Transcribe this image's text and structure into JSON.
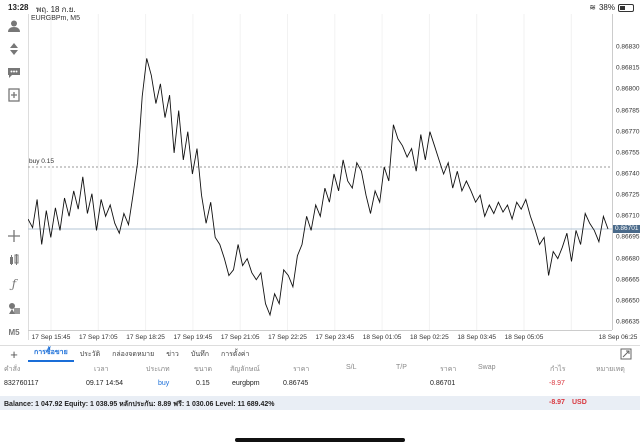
{
  "status_bar": {
    "time": "13:28",
    "date": "พฤ. 18 ก.ย.",
    "battery": "38%"
  },
  "chart": {
    "symbol": "EURGBPm, M5",
    "buy_line_label": "buy 0.15",
    "current_price": "0.86701"
  },
  "chart_data": {
    "type": "line",
    "symbol": "EURGBPm",
    "timeframe": "M5",
    "ylim": [
      0.86635,
      0.86845
    ],
    "y_ticks": [
      "0.86830",
      "0.86815",
      "0.86800",
      "0.86785",
      "0.86770",
      "0.86755",
      "0.86740",
      "0.86725",
      "0.86710",
      "0.86695",
      "0.86680",
      "0.86665",
      "0.86650",
      "0.86635"
    ],
    "x_ticks": [
      "17 Sep 15:45",
      "17 Sep 17:05",
      "17 Sep 18:25",
      "17 Sep 19:45",
      "17 Sep 21:05",
      "17 Sep 22:25",
      "17 Sep 23:45",
      "18 Sep 01:05",
      "18 Sep 02:25",
      "18 Sep 03:45",
      "18 Sep 05:05",
      "18 Sep 06:25"
    ],
    "buy_line": 0.86745,
    "current_price": 0.86701,
    "values": [
      0.86708,
      0.86702,
      0.86722,
      0.8669,
      0.86714,
      0.86695,
      0.86716,
      0.867,
      0.86723,
      0.8671,
      0.86728,
      0.86715,
      0.86738,
      0.86712,
      0.86726,
      0.867,
      0.86722,
      0.8671,
      0.86718,
      0.86705,
      0.86698,
      0.86712,
      0.86704,
      0.86725,
      0.86748,
      0.86795,
      0.86822,
      0.8681,
      0.8679,
      0.86804,
      0.8678,
      0.86796,
      0.86755,
      0.86785,
      0.8675,
      0.8677,
      0.8674,
      0.86758,
      0.86725,
      0.86705,
      0.8672,
      0.86695,
      0.8669,
      0.8668,
      0.86668,
      0.86672,
      0.8669,
      0.86675,
      0.8668,
      0.8667,
      0.86665,
      0.8667,
      0.86648,
      0.8664,
      0.86655,
      0.86648,
      0.86672,
      0.86668,
      0.8666,
      0.86682,
      0.8669,
      0.8671,
      0.867,
      0.86718,
      0.8671,
      0.8673,
      0.8672,
      0.8674,
      0.86728,
      0.8675,
      0.86735,
      0.8673,
      0.86748,
      0.86742,
      0.86725,
      0.86712,
      0.86728,
      0.8672,
      0.86745,
      0.86735,
      0.86775,
      0.86765,
      0.8676,
      0.86752,
      0.86758,
      0.86742,
      0.86768,
      0.8675,
      0.8677,
      0.8676,
      0.8675,
      0.8674,
      0.86748,
      0.8673,
      0.86742,
      0.86728,
      0.86735,
      0.86728,
      0.8672,
      0.86725,
      0.8671,
      0.86718,
      0.86712,
      0.8672,
      0.86713,
      0.86718,
      0.86708,
      0.8672,
      0.86715,
      0.86722,
      0.8671,
      0.86701,
      0.8669,
      0.86695,
      0.86668,
      0.86685,
      0.8668,
      0.86688,
      0.86698,
      0.86678,
      0.867,
      0.8669,
      0.86712,
      0.86705,
      0.867,
      0.86692,
      0.8671,
      0.86701
    ]
  },
  "side_toolbar": [
    {
      "name": "accounts-icon",
      "glyph": "◉"
    },
    {
      "name": "trade-icon",
      "glyph": "⇵"
    },
    {
      "name": "chat-icon",
      "glyph": "●"
    },
    {
      "name": "new-order-icon",
      "glyph": "⊞"
    },
    {
      "name": "crosshair-icon",
      "glyph": "+"
    },
    {
      "name": "indicators-icon",
      "glyph": "♦"
    },
    {
      "name": "function-icon",
      "glyph": "ƒ"
    },
    {
      "name": "objects-icon",
      "glyph": "◆"
    },
    {
      "name": "timeframe-label",
      "glyph": "M5"
    }
  ],
  "tabs": [
    "การซื้อขาย",
    "ประวัติ",
    "กล่องจดหมาย",
    "ข่าว",
    "บันทึก",
    "การตั้งค่า"
  ],
  "table": {
    "headers": [
      "คำสั่ง",
      "เวลา",
      "ประเภท",
      "ขนาด",
      "สัญลักษณ์",
      "ราคา",
      "S/L",
      "T/P",
      "ราคา",
      "Swap",
      "กำไร",
      "หมายเหตุ"
    ],
    "row": {
      "order": "832760117",
      "time": "09.17 14:54",
      "type": "buy",
      "size": "0.15",
      "symbol": "eurgbpm",
      "open_price": "0.86745",
      "sl": "",
      "tp": "",
      "current_price": "0.86701",
      "swap": "",
      "profit": "-8.97",
      "comment": ""
    }
  },
  "balance_bar": {
    "text": "Balance: 1 047.92 Equity: 1 038.95 หลักประกัน: 8.89 ฟรี: 1 030.06 Level: 11 689.42%",
    "profit": "-8.97",
    "currency": "USD"
  },
  "colors": {
    "accent": "#1a6ed8",
    "loss": "#d9363e",
    "price_tag": "#4a6a8a"
  }
}
